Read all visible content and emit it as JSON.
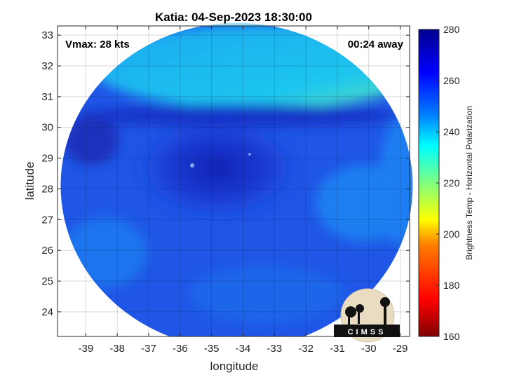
{
  "title": "Katia: 04-Sep-2023 18:30:00",
  "vmax_label": "Vmax: 28 kts",
  "time_label": "00:24 away",
  "xlabel": "longitude",
  "ylabel": "latitude",
  "colorbar_label": "Brightness Temp - Horizontal Polarization",
  "logo_text": "CIMSS",
  "colors": {
    "cmap": [
      "#7f0000",
      "#ff0000",
      "#ff8000",
      "#ffff00",
      "#80ff80",
      "#00ffff",
      "#0080ff",
      "#0000ff",
      "#00008f"
    ],
    "swath_base": "#1f56e6"
  },
  "chart_data": {
    "type": "heatmap",
    "title": "Katia: 04-Sep-2023 18:30:00",
    "xlabel": "longitude",
    "ylabel": "latitude",
    "xlim": [
      -39.9,
      -28.7
    ],
    "ylim": [
      23.2,
      33.3
    ],
    "xticks": [
      -39,
      -38,
      -37,
      -36,
      -35,
      -34,
      -33,
      -32,
      -31,
      -30,
      -29
    ],
    "yticks": [
      24,
      25,
      26,
      27,
      28,
      29,
      30,
      31,
      32,
      33
    ],
    "grid": true,
    "colorbar": {
      "label": "Brightness Temp - Horizontal Polarization",
      "min": 160,
      "max": 280,
      "ticks": [
        160,
        180,
        200,
        220,
        240,
        260,
        280
      ]
    },
    "swath": {
      "center_lon": -34.2,
      "center_lat": 28.1,
      "radius_lon": 5.6,
      "radius_lat": 5.3
    },
    "features": [
      {
        "name": "northern warm band",
        "lon": [
          -36.5,
          -29
        ],
        "lat": [
          30.8,
          33.3
        ],
        "value": 240
      },
      {
        "name": "storm core",
        "lon": -34.8,
        "lat": 28.6,
        "value": 268
      },
      {
        "name": "typical background",
        "value": 255
      }
    ]
  }
}
